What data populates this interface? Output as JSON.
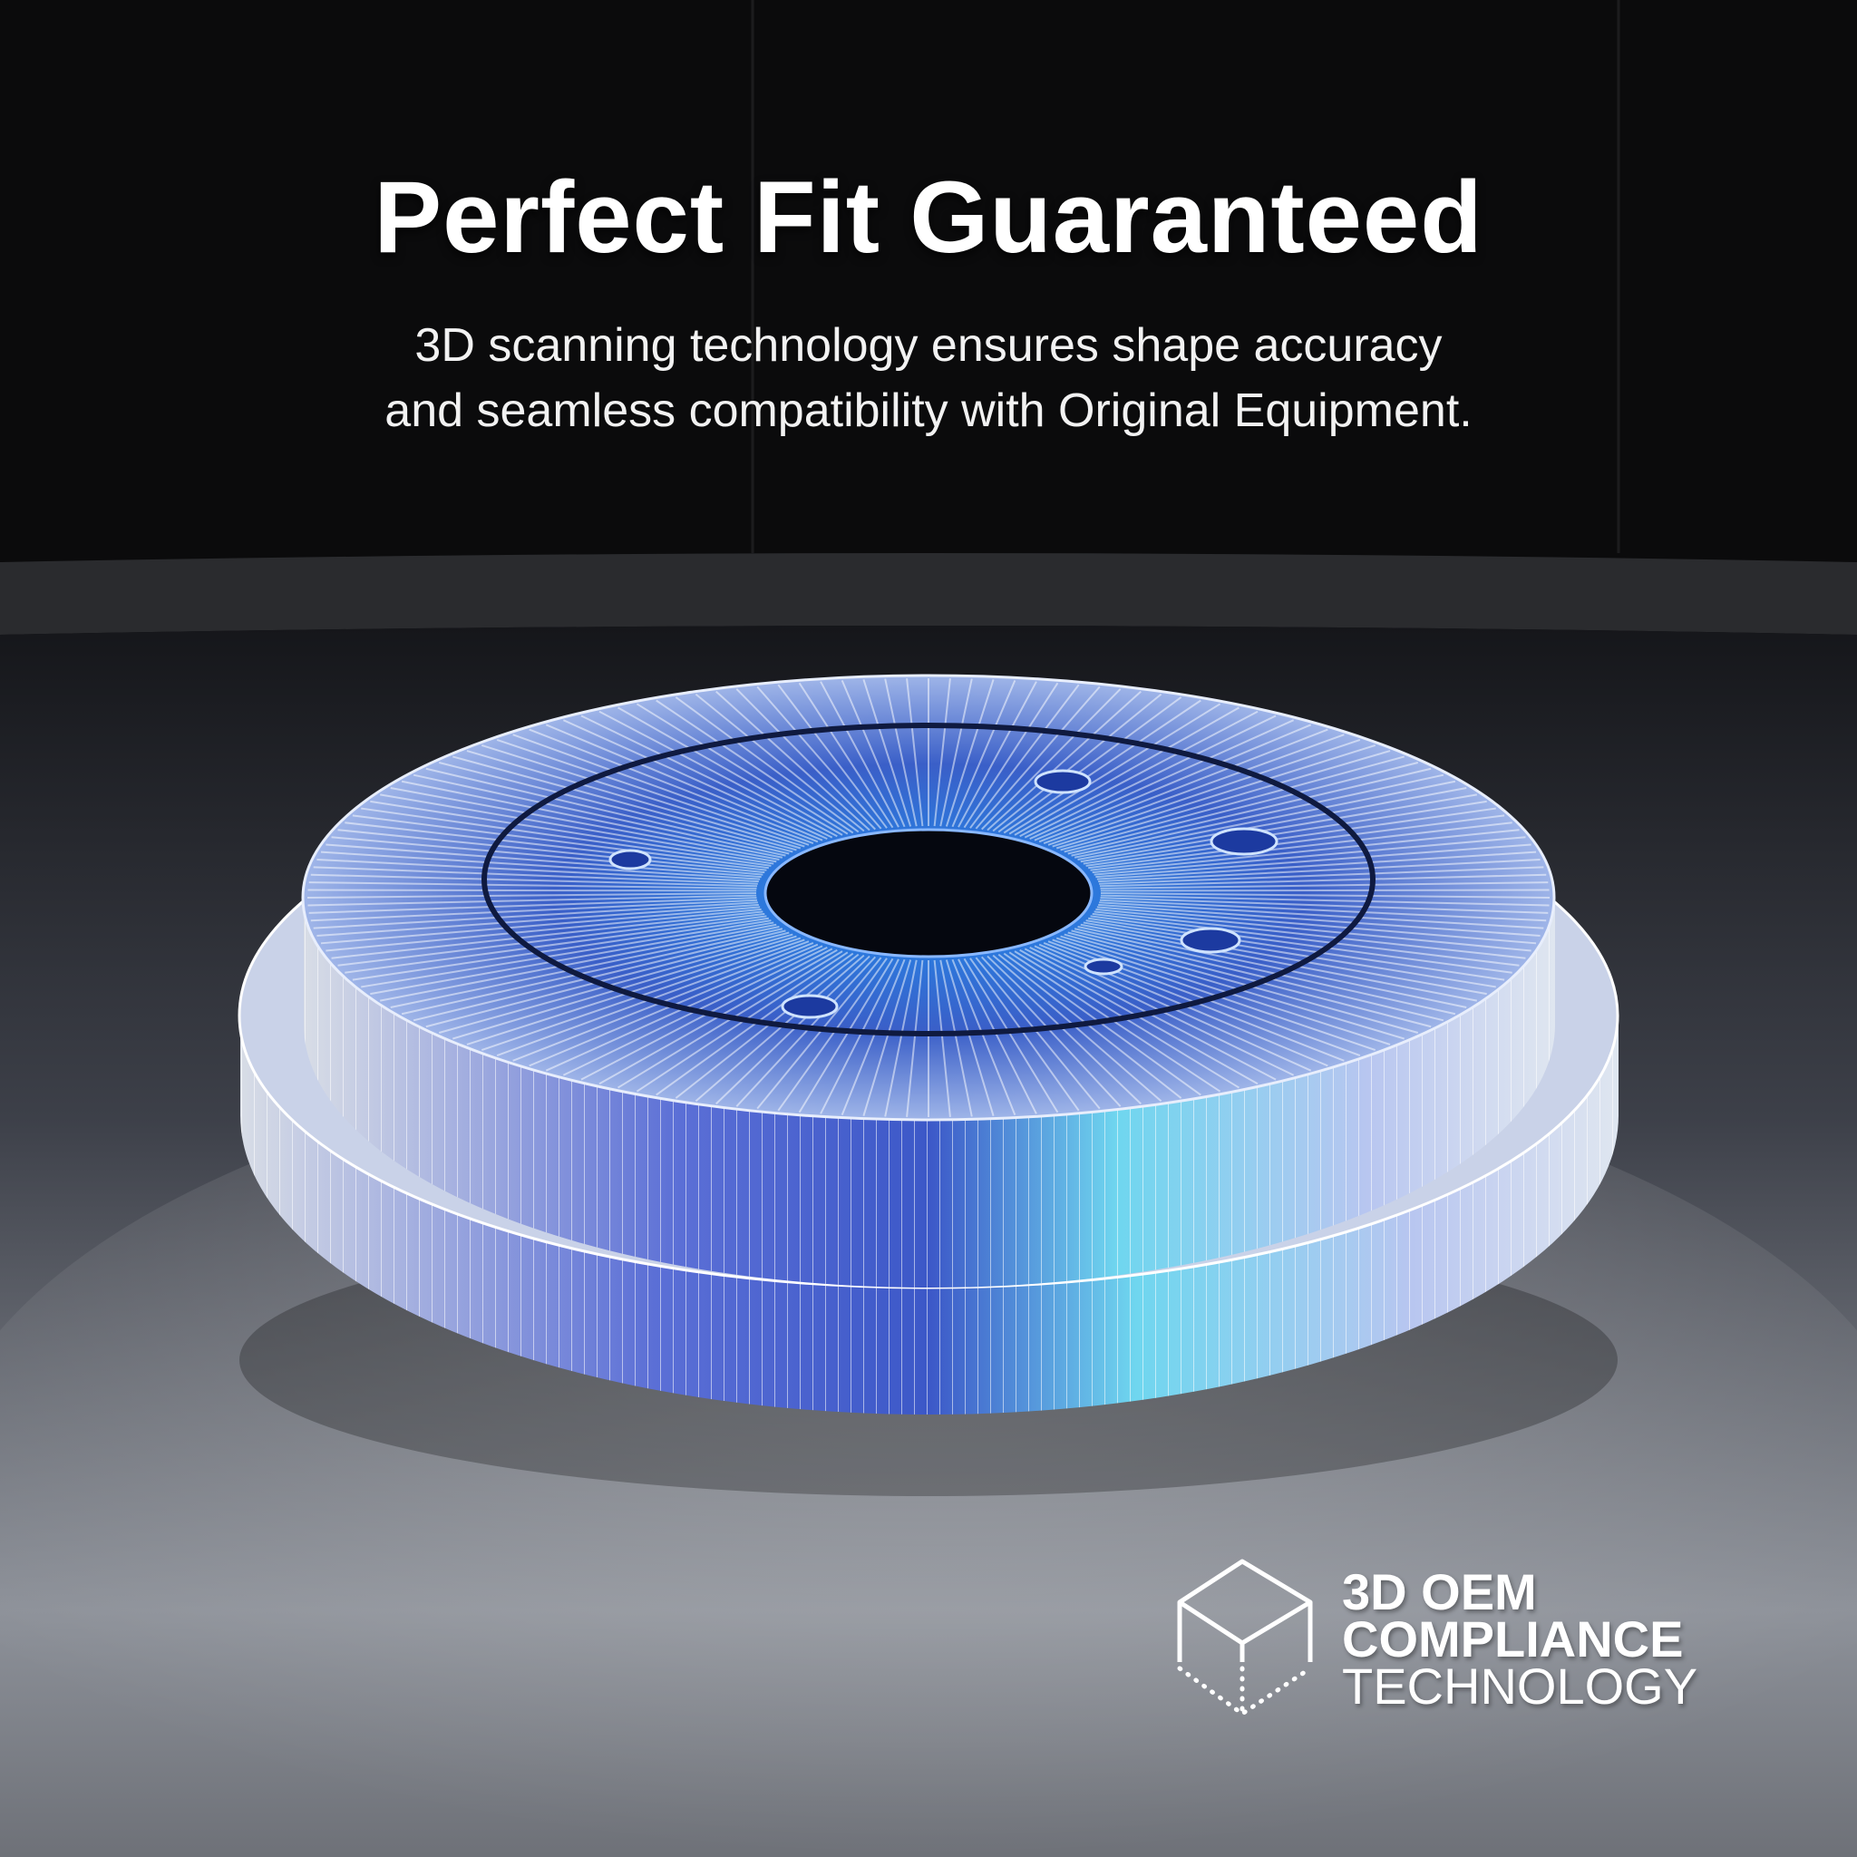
{
  "headline": "Perfect Fit Guaranteed",
  "description": {
    "line1": "3D scanning technology ensures shape accuracy",
    "line2": "and seamless compatibility with Original Equipment."
  },
  "badge": {
    "line1": "3D OEM",
    "line2": "COMPLIANCE",
    "line3": "TECHNOLOGY",
    "icon": "wireframe-cube-icon"
  },
  "colors": {
    "background": "#0a0a0b",
    "accent": "#3aa0ff",
    "floor": "#8a8f98"
  }
}
